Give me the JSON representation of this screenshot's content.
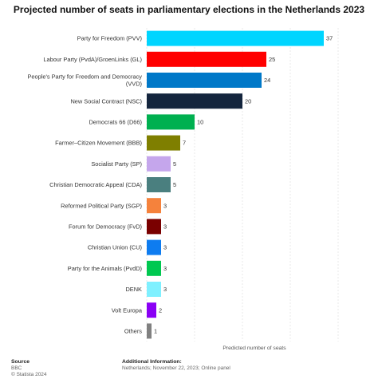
{
  "chart_data": {
    "type": "bar",
    "orientation": "horizontal",
    "title": "Projected number of seats in parliamentary elections in the Netherlands 2023",
    "xlabel": "Predicted number of seats",
    "xlim": [
      0,
      40
    ],
    "grid": true,
    "categories": [
      "Party for Freedom (PVV)",
      "Labour Party (PvdA)/GroenLinks (GL)",
      "People's Party for Freedom and Democracy (VVD)",
      "New Social Contract (NSC)",
      "Democrats 66 (D66)",
      "Farmer–Citizen Movement (BBB)",
      "Socialist Party (SP)",
      "Christian Democratic Appeal (CDA)",
      "Reformed Political Party (SGP)",
      "Forum for Democracy (FvD)",
      "Christian Union (CU)",
      "Party for the Animals (PvdD)",
      "DENK",
      "Volt Europa",
      "Others"
    ],
    "values": [
      37,
      25,
      24,
      20,
      10,
      7,
      5,
      5,
      3,
      3,
      3,
      3,
      3,
      2,
      1
    ],
    "colors": [
      "#00d5ff",
      "#ff0000",
      "#0078c8",
      "#14253d",
      "#00b050",
      "#7f7f00",
      "#c5a6ec",
      "#4a7f7f",
      "#f5823c",
      "#7a0000",
      "#0e7cf0",
      "#00c850",
      "#7ff0ff",
      "#8a00f5",
      "#808080"
    ]
  },
  "footer": {
    "source_label": "Source",
    "source_name": "BBC",
    "copyright": "© Statista 2024",
    "info_label": "Additional Information:",
    "info_text": "Netherlands; November 22, 2023; Online panel"
  }
}
